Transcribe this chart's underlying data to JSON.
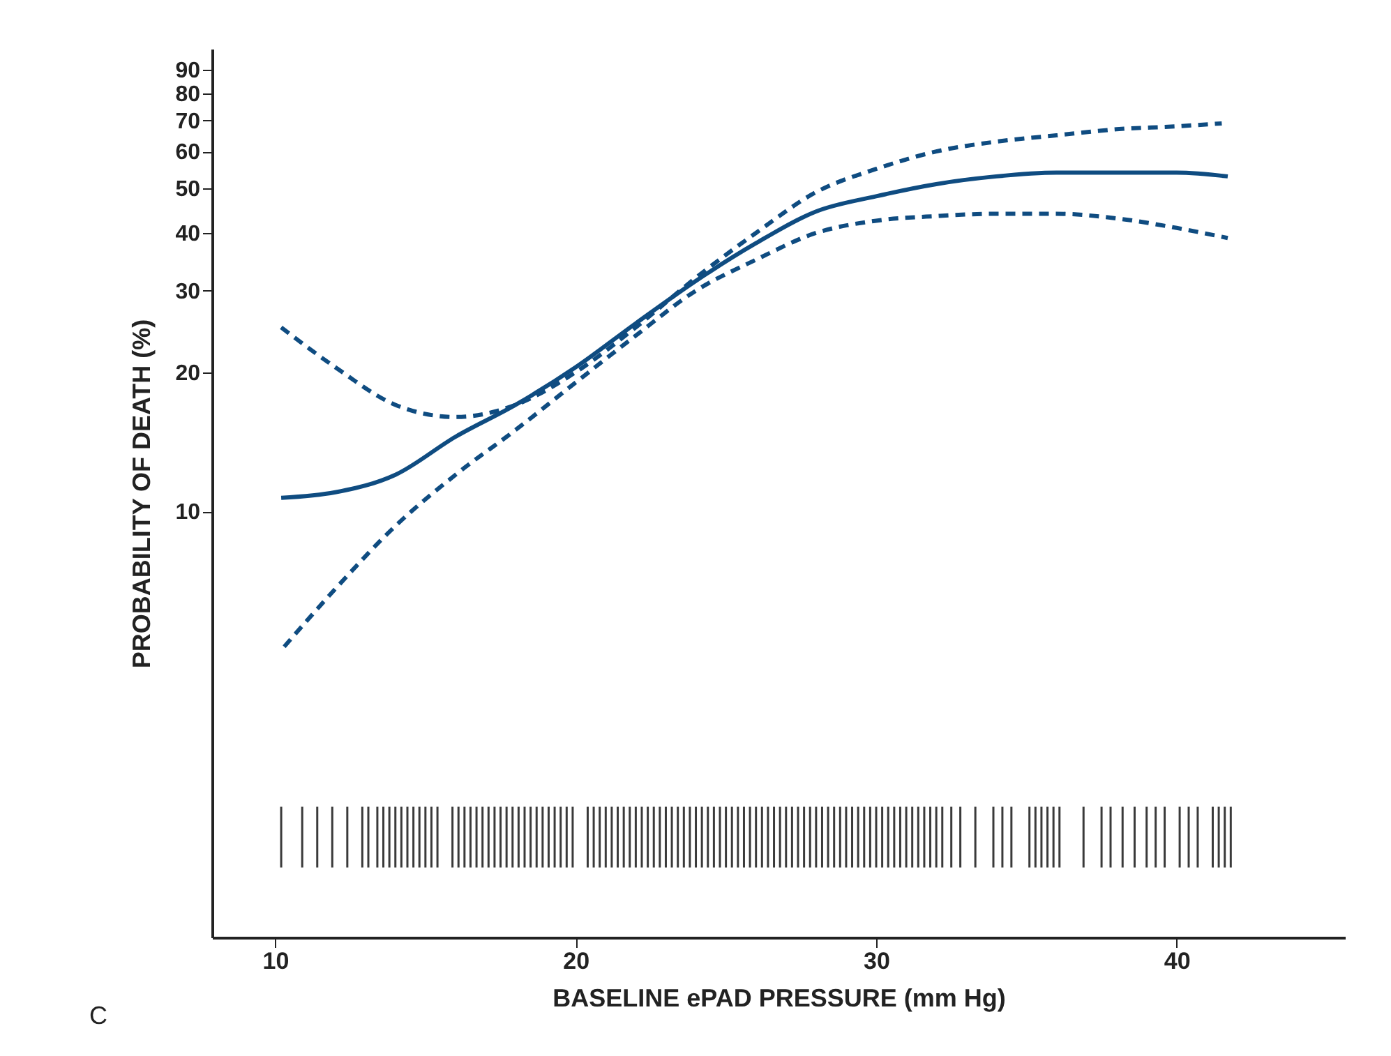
{
  "chart_data": {
    "type": "line",
    "xlabel": "BASELINE ePAD PRESSURE (mm Hg)",
    "ylabel": "PROBABILITY OF DEATH (%)",
    "annotations": [
      "C"
    ],
    "log": "y",
    "grid": false,
    "xlim": [
      7.9,
      45.6
    ],
    "xticks": [
      10,
      20,
      30,
      40
    ],
    "ylim": [
      1.2,
      100
    ],
    "yticks": [
      10,
      20,
      30,
      40,
      50,
      60,
      70,
      80,
      90
    ],
    "series": [
      {
        "color": "#0f4c81",
        "line_style": "solid",
        "x": [
          10.2,
          12,
          14,
          16,
          18,
          20,
          22,
          24,
          26,
          28,
          30,
          32,
          34,
          36,
          38,
          40,
          41.7
        ],
        "values": [
          10.7,
          11,
          12,
          14.5,
          17,
          20.5,
          25.5,
          31.5,
          38,
          44.5,
          48,
          51,
          53,
          54,
          54,
          54,
          53
        ]
      },
      {
        "color": "#0f4c81",
        "line_style": "dashed",
        "x": [
          10.2,
          12,
          14,
          16,
          18,
          20,
          22,
          24,
          26,
          28,
          30,
          32,
          34,
          36,
          38,
          40,
          41.5
        ],
        "values": [
          25,
          20.5,
          17,
          16,
          17,
          20,
          25,
          32,
          40,
          49,
          55,
          60,
          63,
          65,
          67,
          68,
          69
        ]
      },
      {
        "color": "#0f4c81",
        "line_style": "dashed",
        "x": [
          10.3,
          12,
          14,
          16,
          18,
          20,
          22,
          24,
          26,
          28,
          30,
          32,
          34,
          36,
          38,
          40,
          41.7
        ],
        "values": [
          5.1,
          6.8,
          9.3,
          12,
          15,
          19,
          24,
          30,
          35,
          40,
          42.5,
          43.5,
          44,
          44,
          43,
          41,
          39
        ]
      },
      {
        "type": "bar",
        "color": "#3a3a3a",
        "base": [
          1.7,
          1.7,
          1.7,
          1.7,
          1.7,
          1.7,
          1.7,
          1.7,
          1.7,
          1.7,
          1.7,
          1.7,
          1.7,
          1.7,
          1.7,
          1.7,
          1.7,
          1.7,
          1.7,
          1.7,
          1.7,
          1.7,
          1.7,
          1.7,
          1.7,
          1.7,
          1.7,
          1.7,
          1.7,
          1.7,
          1.7,
          1.7,
          1.7,
          1.7,
          1.7,
          1.7,
          1.7,
          1.7,
          1.7,
          1.7,
          1.7,
          1.7,
          1.7,
          1.7,
          1.7,
          1.7,
          1.7,
          1.7,
          1.7,
          1.7,
          1.7,
          1.7,
          1.7,
          1.7,
          1.7,
          1.7,
          1.7,
          1.7,
          1.7,
          1.7,
          1.7,
          1.7,
          1.7,
          1.7,
          1.7,
          1.7,
          1.7,
          1.7,
          1.7,
          1.7,
          1.7,
          1.7,
          1.7,
          1.7,
          1.7,
          1.7,
          1.7,
          1.7,
          1.7,
          1.7,
          1.7,
          1.7,
          1.7,
          1.7,
          1.7,
          1.7,
          1.7,
          1.7,
          1.7,
          1.7,
          1.7,
          1.7,
          1.7,
          1.7,
          1.7,
          1.7,
          1.7,
          1.7,
          1.7,
          1.7,
          1.7,
          1.7,
          1.7,
          1.7,
          1.7,
          1.7,
          1.7,
          1.7,
          1.7,
          1.7,
          1.7,
          1.7,
          1.7,
          1.7,
          1.7,
          1.7,
          1.7,
          1.7,
          1.7,
          1.7,
          1.7,
          1.7,
          1.7,
          1.7,
          1.7,
          1.7
        ],
        "x": [
          10.2,
          10.9,
          11.4,
          11.9,
          12.4,
          12.9,
          13.1,
          13.4,
          13.6,
          13.8,
          14.0,
          14.2,
          14.4,
          14.6,
          14.8,
          15.0,
          15.2,
          15.4,
          15.9,
          16.1,
          16.3,
          16.5,
          16.7,
          16.9,
          17.1,
          17.3,
          17.5,
          17.7,
          17.9,
          18.1,
          18.3,
          18.5,
          18.7,
          18.9,
          19.1,
          19.3,
          19.5,
          19.7,
          19.9,
          20.4,
          20.6,
          20.8,
          21.0,
          21.2,
          21.4,
          21.6,
          21.8,
          22.0,
          22.2,
          22.4,
          22.6,
          22.8,
          23.0,
          23.2,
          23.4,
          23.6,
          23.8,
          24.0,
          24.2,
          24.4,
          24.6,
          24.8,
          25.0,
          25.2,
          25.4,
          25.6,
          25.8,
          26.0,
          26.2,
          26.4,
          26.6,
          26.8,
          27.0,
          27.2,
          27.4,
          27.6,
          27.8,
          28.0,
          28.2,
          28.4,
          28.6,
          28.8,
          29.0,
          29.2,
          29.4,
          29.6,
          29.8,
          30.0,
          30.2,
          30.4,
          30.6,
          30.8,
          31.0,
          31.2,
          31.4,
          31.6,
          31.8,
          32.0,
          32.2,
          32.5,
          32.8,
          33.3,
          33.9,
          34.2,
          34.5,
          35.1,
          35.3,
          35.5,
          35.7,
          35.9,
          36.1,
          36.9,
          37.5,
          37.8,
          38.2,
          38.6,
          39.0,
          39.3,
          39.6,
          40.1,
          40.4,
          40.7,
          41.2,
          41.4,
          41.6,
          41.8
        ],
        "values": [
          0.6,
          0.6,
          0.6,
          0.6,
          0.6,
          0.6,
          0.6,
          0.6,
          0.6,
          0.6,
          0.6,
          0.6,
          0.6,
          0.6,
          0.6,
          0.6,
          0.6,
          0.6,
          0.6,
          0.6,
          0.6,
          0.6,
          0.6,
          0.6,
          0.6,
          0.6,
          0.6,
          0.6,
          0.6,
          0.6,
          0.6,
          0.6,
          0.6,
          0.6,
          0.6,
          0.6,
          0.6,
          0.6,
          0.6,
          0.6,
          0.6,
          0.6,
          0.6,
          0.6,
          0.6,
          0.6,
          0.6,
          0.6,
          0.6,
          0.6,
          0.6,
          0.6,
          0.6,
          0.6,
          0.6,
          0.6,
          0.6,
          0.6,
          0.6,
          0.6,
          0.6,
          0.6,
          0.6,
          0.6,
          0.6,
          0.6,
          0.6,
          0.6,
          0.6,
          0.6,
          0.6,
          0.6,
          0.6,
          0.6,
          0.6,
          0.6,
          0.6,
          0.6,
          0.6,
          0.6,
          0.6,
          0.6,
          0.6,
          0.6,
          0.6,
          0.6,
          0.6,
          0.6,
          0.6,
          0.6,
          0.6,
          0.6,
          0.6,
          0.6,
          0.6,
          0.6,
          0.6,
          0.6,
          0.6,
          0.6,
          0.6,
          0.6,
          0.6,
          0.6,
          0.6,
          0.6,
          0.6,
          0.6,
          0.6,
          0.6,
          0.6,
          0.6,
          0.6,
          0.6,
          0.6,
          0.6,
          0.6,
          0.6,
          0.6,
          0.6,
          0.6,
          0.6,
          0.6,
          0.6,
          0.6,
          0.6
        ]
      }
    ]
  }
}
